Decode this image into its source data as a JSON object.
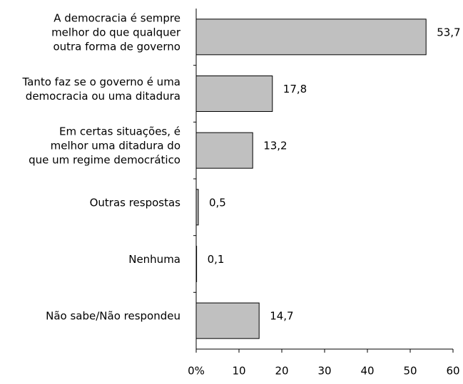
{
  "chart_data": {
    "type": "bar",
    "orientation": "horizontal",
    "categories": [
      [
        "A democracia é sempre",
        "melhor do que qualquer",
        "outra forma de governo"
      ],
      [
        "Tanto faz se o governo é uma",
        "democracia ou uma ditadura"
      ],
      [
        "Em certas situações, é",
        "melhor uma ditadura do",
        "que um regime democrático"
      ],
      [
        "Outras respostas"
      ],
      [
        "Nenhuma"
      ],
      [
        "Não sabe/Não respondeu"
      ]
    ],
    "values": [
      53.7,
      17.8,
      13.2,
      0.5,
      0.1,
      14.7
    ],
    "value_labels": [
      "53,7",
      "17,8",
      "13,2",
      "0,5",
      "0,1",
      "14,7"
    ],
    "color": "#c0c0c0",
    "xlim": [
      0,
      60
    ],
    "xticks": [
      {
        "value": 0,
        "label": "0%"
      },
      10,
      20,
      30,
      40,
      50,
      60
    ]
  }
}
